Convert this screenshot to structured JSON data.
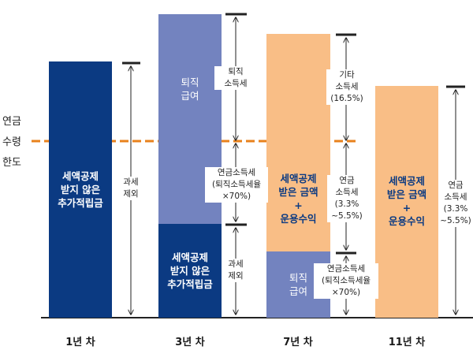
{
  "colors": {
    "navy": "#0b3a82",
    "periwinkle": "#7383bf",
    "peach": "#f9be86",
    "limit_line": "#e8821c",
    "arrow": "#222222"
  },
  "limit_label": [
    "연금",
    "수령",
    "한도"
  ],
  "years": {
    "y1": "1년 차",
    "y3": "3년 차",
    "y7": "7년 차",
    "y11": "11년 차"
  },
  "bars": {
    "y1_main": "세액공제\n받지 않은\n추가적립금",
    "y3_top": "퇴직\n급여",
    "y3_bottom": "세액공제\n받지 않은\n추가적립금",
    "y7_top": "세액공제\n받은 금액\n+\n운용수익",
    "y7_bottom": "퇴직\n급여",
    "y11_main": "세액공제\n받은 금액\n+\n운용수익"
  },
  "labels": {
    "y1_tax": "과세\n제외",
    "y3_upper": "퇴직\n소득세",
    "y3_middle": "연금소득세\n(퇴직소득세율\n×70%)",
    "y3_lower": "과세\n제외",
    "y7_upper": "기타\n소득세\n(16.5%)",
    "y7_middle": "연금\n소득세\n(3.3%\n~5.5%)",
    "y7_lower": "연금소득세\n(퇴직소득세율\n×70%)",
    "y11_tax": "연금\n소득세\n(3.3%\n~5.5%)"
  }
}
